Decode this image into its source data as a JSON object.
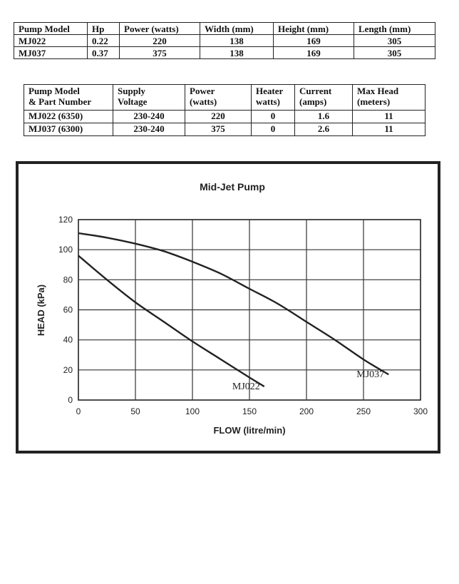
{
  "table1": {
    "headers": [
      "Pump Model",
      "Hp",
      "Power (watts)",
      "Width (mm)",
      "Height (mm)",
      "Length (mm)"
    ],
    "rows": [
      [
        "MJ022",
        "0.22",
        "220",
        "138",
        "169",
        "305"
      ],
      [
        "MJ037",
        "0.37",
        "375",
        "138",
        "169",
        "305"
      ]
    ]
  },
  "table2": {
    "headers": [
      [
        "Pump Model",
        "& Part Number"
      ],
      [
        "Supply",
        "Voltage"
      ],
      [
        "Power",
        "(watts)"
      ],
      [
        "Heater",
        "watts)"
      ],
      [
        "Current",
        "(amps)"
      ],
      [
        "Max Head",
        "(meters)"
      ]
    ],
    "rows": [
      [
        "MJ022 (6350)",
        "230-240",
        "220",
        "0",
        "1.6",
        "11"
      ],
      [
        "MJ037 (6300)",
        "230-240",
        "375",
        "0",
        "2.6",
        "11"
      ]
    ]
  },
  "chart_data": {
    "type": "line",
    "title": "Mid-Jet Pump",
    "xlabel": "FLOW (litre/min)",
    "ylabel": "HEAD (kPa)",
    "xlim": [
      0,
      300
    ],
    "ylim": [
      0,
      120
    ],
    "xticks": [
      0,
      50,
      100,
      150,
      200,
      250,
      300
    ],
    "yticks": [
      0,
      20,
      40,
      60,
      80,
      100,
      120
    ],
    "grid": true,
    "legend": "none",
    "series": [
      {
        "name": "MJ022",
        "x": [
          0,
          25,
          50,
          75,
          100,
          125,
          150,
          163
        ],
        "y": [
          96,
          80,
          65,
          52,
          39,
          27,
          15,
          9
        ]
      },
      {
        "name": "MJ037",
        "x": [
          0,
          25,
          50,
          75,
          100,
          125,
          150,
          175,
          200,
          225,
          250,
          272
        ],
        "y": [
          111,
          108,
          104,
          99,
          92,
          84,
          74,
          64,
          52,
          40,
          27,
          17
        ]
      }
    ]
  }
}
